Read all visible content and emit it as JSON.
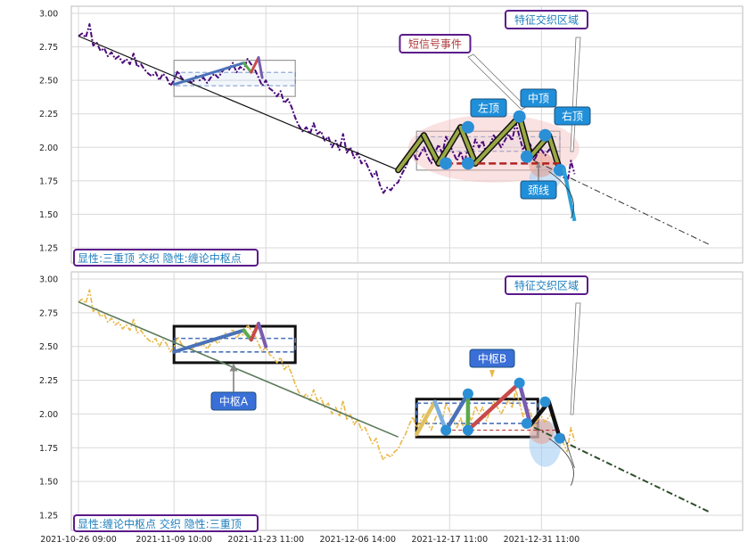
{
  "chart_data": {
    "type": "line",
    "x_ticks": [
      "2021-10-26 09:00",
      "2021-11-09 10:00",
      "2021-11-23 11:00",
      "2021-12-06 14:00",
      "2021-12-17 11:00",
      "2021-12-31 11:00"
    ],
    "ylim": [
      1.15,
      3.05
    ],
    "y_ticks": [
      "3.00",
      "2.75",
      "2.50",
      "2.25",
      "2.00",
      "1.75",
      "1.50",
      "1.25"
    ],
    "grid": true,
    "colors": {
      "price_top": "#4b0b7a",
      "price_bottom": "#e8b84a",
      "trend": "#111111",
      "zigzag_blue": "#4a72b8",
      "zigzag_green": "#5aaa4a",
      "zigzag_red": "#c84a4a",
      "zigzag_purple": "#7a5cb0",
      "pivot_dot": "#2b8fd6",
      "neckline": "#b22222",
      "annotation_bg": "#1f8fd9",
      "zhongshu_label_bg": "#3a6fd8",
      "legend_border": "#5b1a8a",
      "legend_text": "#1f7fbf",
      "pink_zone": "#f2b7b7"
    },
    "price_series": [
      [
        0,
        2.83
      ],
      [
        1,
        2.85
      ],
      [
        2,
        2.82
      ],
      [
        3,
        2.92
      ],
      [
        4,
        2.76
      ],
      [
        5,
        2.78
      ],
      [
        6,
        2.72
      ],
      [
        7,
        2.74
      ],
      [
        8,
        2.68
      ],
      [
        9,
        2.71
      ],
      [
        10,
        2.66
      ],
      [
        11,
        2.68
      ],
      [
        12,
        2.63
      ],
      [
        13,
        2.66
      ],
      [
        14,
        2.62
      ],
      [
        15,
        2.7
      ],
      [
        16,
        2.6
      ],
      [
        17,
        2.62
      ],
      [
        18,
        2.58
      ],
      [
        19,
        2.55
      ],
      [
        20,
        2.53
      ],
      [
        21,
        2.56
      ],
      [
        22,
        2.5
      ],
      [
        23,
        2.55
      ],
      [
        24,
        2.52
      ],
      [
        25,
        2.46
      ],
      [
        26,
        2.5
      ],
      [
        27,
        2.57
      ],
      [
        28,
        2.52
      ],
      [
        29,
        2.49
      ],
      [
        30,
        2.5
      ],
      [
        31,
        2.48
      ],
      [
        32,
        2.53
      ],
      [
        33,
        2.5
      ],
      [
        34,
        2.52
      ],
      [
        35,
        2.48
      ],
      [
        36,
        2.52
      ],
      [
        37,
        2.55
      ],
      [
        38,
        2.52
      ],
      [
        39,
        2.56
      ],
      [
        40,
        2.6
      ],
      [
        41,
        2.58
      ],
      [
        42,
        2.63
      ],
      [
        43,
        2.56
      ],
      [
        44,
        2.6
      ],
      [
        45,
        2.58
      ],
      [
        46,
        2.66
      ],
      [
        47,
        2.62
      ],
      [
        48,
        2.58
      ],
      [
        49,
        2.52
      ],
      [
        50,
        2.46
      ],
      [
        51,
        2.5
      ],
      [
        52,
        2.44
      ],
      [
        53,
        2.42
      ],
      [
        54,
        2.38
      ],
      [
        55,
        2.42
      ],
      [
        56,
        2.33
      ],
      [
        57,
        2.36
      ],
      [
        58,
        2.3
      ],
      [
        59,
        2.22
      ],
      [
        60,
        2.16
      ],
      [
        61,
        2.12
      ],
      [
        62,
        2.15
      ],
      [
        63,
        2.1
      ],
      [
        64,
        2.18
      ],
      [
        65,
        2.1
      ],
      [
        66,
        2.12
      ],
      [
        67,
        2.05
      ],
      [
        68,
        2.08
      ],
      [
        69,
        2.0
      ],
      [
        70,
        2.05
      ],
      [
        71,
        1.98
      ],
      [
        72,
        2.1
      ],
      [
        73,
        1.96
      ],
      [
        74,
        2.0
      ],
      [
        75,
        1.92
      ],
      [
        76,
        1.96
      ],
      [
        77,
        1.88
      ],
      [
        78,
        1.9
      ],
      [
        79,
        1.84
      ],
      [
        80,
        1.78
      ],
      [
        81,
        1.82
      ],
      [
        82,
        1.72
      ],
      [
        83,
        1.66
      ],
      [
        84,
        1.7
      ],
      [
        85,
        1.68
      ],
      [
        86,
        1.72
      ],
      [
        87,
        1.74
      ],
      [
        88,
        1.8
      ],
      [
        89,
        1.85
      ],
      [
        90,
        1.92
      ],
      [
        91,
        1.98
      ],
      [
        92,
        1.9
      ],
      [
        93,
        1.95
      ],
      [
        94,
        2.0
      ],
      [
        95,
        1.93
      ],
      [
        96,
        1.88
      ],
      [
        97,
        1.96
      ],
      [
        98,
        2.02
      ],
      [
        99,
        1.95
      ],
      [
        100,
        2.08
      ],
      [
        101,
        2.02
      ],
      [
        102,
        1.96
      ],
      [
        103,
        1.9
      ],
      [
        104,
        1.97
      ],
      [
        105,
        1.88
      ],
      [
        106,
        2.0
      ],
      [
        107,
        1.95
      ],
      [
        108,
        2.06
      ],
      [
        109,
        2.0
      ],
      [
        110,
        2.05
      ],
      [
        111,
        1.95
      ],
      [
        112,
        2.02
      ],
      [
        113,
        2.09
      ],
      [
        114,
        2.05
      ],
      [
        115,
        2.0
      ],
      [
        116,
        2.05
      ],
      [
        117,
        2.1
      ],
      [
        118,
        2.05
      ],
      [
        119,
        2.18
      ],
      [
        120,
        2.08
      ],
      [
        121,
        1.98
      ],
      [
        122,
        2.05
      ],
      [
        123,
        2.02
      ],
      [
        124,
        1.9
      ],
      [
        125,
        1.96
      ],
      [
        126,
        1.98
      ],
      [
        127,
        1.94
      ],
      [
        128,
        1.98
      ],
      [
        129,
        2.0
      ],
      [
        130,
        1.92
      ],
      [
        131,
        1.85
      ],
      [
        132,
        1.78
      ],
      [
        133,
        1.72
      ],
      [
        134,
        1.9
      ],
      [
        135,
        1.8
      ]
    ],
    "trend_line": [
      [
        0,
        2.83
      ],
      [
        87,
        1.83
      ]
    ],
    "projection_line": [
      [
        124,
        1.9
      ],
      [
        172,
        1.27
      ]
    ],
    "top_panel": {
      "legend_text": "显性:三重顶 交织 隐性:缠论中枢点",
      "zhongshu_box_1": {
        "x0": 26,
        "x1": 59,
        "y_low": 2.38,
        "y_high": 2.65,
        "inner_low": 2.46,
        "inner_high": 2.56
      },
      "zhongshu_box_2": {
        "x0": 92,
        "x1": 131,
        "y_low": 1.83,
        "y_high": 2.12,
        "inner_low": 1.97,
        "inner_high": 2.08
      },
      "zigzag": [
        [
          26,
          2.47
        ],
        [
          45,
          2.63
        ],
        [
          47,
          2.56
        ],
        [
          49,
          2.67
        ],
        [
          50,
          2.52
        ]
      ],
      "pattern_zigzag": [
        [
          87,
          1.83
        ],
        [
          94,
          2.09
        ],
        [
          98,
          1.88
        ],
        [
          104,
          2.15
        ],
        [
          108,
          1.88
        ],
        [
          120,
          2.23
        ],
        [
          123,
          1.93
        ],
        [
          128,
          2.09
        ],
        [
          131,
          1.83
        ]
      ],
      "pivot_points": [
        [
          100,
          1.88
        ],
        [
          106,
          2.15
        ],
        [
          106,
          1.88
        ],
        [
          120,
          2.23
        ],
        [
          122,
          1.93
        ],
        [
          127,
          2.09
        ],
        [
          131,
          1.83
        ]
      ],
      "neckline": {
        "x0": 100,
        "x1": 131,
        "y": 1.88
      },
      "annotations": {
        "signal_event": "短信号事件",
        "feature_zone": "特征交织区域",
        "left_top": "左顶",
        "mid_top": "中顶",
        "right_top": "右顶",
        "neckline": "颈线"
      }
    },
    "bottom_panel": {
      "legend_text": "显性:缠论中枢点 交织 隐性:三重顶",
      "zhongshu_A": {
        "label": "中枢A",
        "x0": 26,
        "x1": 59,
        "y_low": 2.38,
        "y_high": 2.65,
        "inner_low": 2.46,
        "inner_high": 2.56
      },
      "zhongshu_B": {
        "label": "中枢B",
        "x0": 92,
        "x1": 125,
        "y_low": 1.83,
        "y_high": 2.11,
        "inner_low": 1.93,
        "inner_high": 2.08
      },
      "feature_zone": "特征交织区域",
      "zigzag": [
        [
          26,
          2.46
        ],
        [
          45,
          2.62
        ],
        [
          47,
          2.55
        ],
        [
          49,
          2.67
        ],
        [
          51,
          2.5
        ]
      ],
      "pattern_zigzag": [
        [
          92,
          1.85
        ],
        [
          97,
          2.09
        ],
        [
          100,
          1.88
        ],
        [
          106,
          2.15
        ],
        [
          106,
          1.88
        ],
        [
          120,
          2.23
        ],
        [
          123,
          1.92
        ],
        [
          128,
          2.09
        ],
        [
          131,
          1.82
        ]
      ],
      "pivot_points": [
        [
          100,
          1.88
        ],
        [
          106,
          2.15
        ],
        [
          106,
          1.88
        ],
        [
          120,
          2.23
        ],
        [
          122,
          1.93
        ],
        [
          127,
          2.09
        ],
        [
          131,
          1.82
        ]
      ]
    }
  }
}
